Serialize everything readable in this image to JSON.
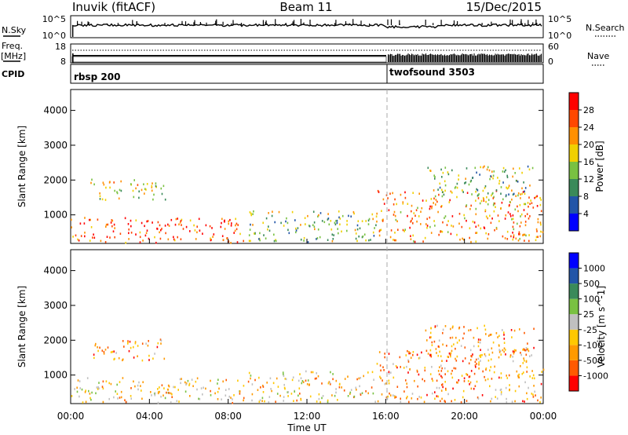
{
  "header": {
    "station": "Inuvik (fitACF)",
    "beam": "Beam 11",
    "date": "15/Dec/2015"
  },
  "strips": {
    "nsky_label": "N.Sky",
    "nsky_ticks": [
      "10^5",
      "10^0"
    ],
    "nsearch_label": "N.Search",
    "nsearch_ticks": [
      "10^5",
      "10^0"
    ],
    "freq_label_line1": "Freq.",
    "freq_label_line2": "[MHz]",
    "freq_ticks": [
      "18",
      "8"
    ],
    "nave_label": "Nave",
    "nave_ticks": [
      "60",
      "0"
    ],
    "cpid_label": "CPID",
    "modes": [
      {
        "name": "rbsp 200",
        "start_hour": 0
      },
      {
        "name": "twofsound 3503",
        "start_hour": 16
      }
    ]
  },
  "axes": {
    "ylabel": "Slant Range [km]",
    "xlabel": "Time UT",
    "x_ticks": [
      "00:00",
      "04:00",
      "08:00",
      "12:00",
      "16:00",
      "20:00",
      "00:00"
    ],
    "y_ticks": [
      "1000",
      "2000",
      "3000",
      "4000"
    ]
  },
  "chart_data": [
    {
      "type": "heatmap",
      "title": "",
      "xlabel": "Time UT",
      "ylabel": "Slant Range [km]",
      "xlim_hours": [
        0,
        24
      ],
      "ylim_km": [
        180,
        4600
      ],
      "colorbar_label": "Power [dB]",
      "colorbar_ticks": [
        "4",
        "8",
        "12",
        "16",
        "20",
        "24",
        "28"
      ],
      "colors": [
        "#0000ff",
        "#2255a8",
        "#3a8a5a",
        "#79c142",
        "#f0d000",
        "#ff9000",
        "#ff4800",
        "#ff0000"
      ],
      "regions": [
        {
          "t": [
            0.0,
            8.8
          ],
          "r": [
            180,
            900
          ],
          "level": 6
        },
        {
          "t": [
            1.0,
            4.8
          ],
          "r": [
            1400,
            2000
          ],
          "level": 4
        },
        {
          "t": [
            9.0,
            15.5
          ],
          "r": [
            200,
            1100
          ],
          "level": 3
        },
        {
          "t": [
            15.5,
            24.0
          ],
          "r": [
            200,
            1700
          ],
          "level": 5
        },
        {
          "t": [
            18.0,
            23.5
          ],
          "r": [
            1500,
            2400
          ],
          "level": 3
        }
      ]
    },
    {
      "type": "heatmap",
      "title": "",
      "xlabel": "Time UT",
      "ylabel": "Slant Range [km]",
      "xlim_hours": [
        0,
        24
      ],
      "ylim_km": [
        180,
        4600
      ],
      "colorbar_label": "Velocity [m s^-1]",
      "colorbar_ticks": [
        "-1000",
        "-500",
        "-100",
        "-25",
        "25",
        "100",
        "500",
        "1000"
      ],
      "colors": [
        "#ff0000",
        "#ff5a00",
        "#ff9a00",
        "#ffc800",
        "#c0c0c0",
        "#79c142",
        "#3a8a5a",
        "#2255a8",
        "#0000ff"
      ],
      "regions": [
        {
          "t": [
            0.0,
            8.8
          ],
          "r": [
            180,
            900
          ],
          "level": 3
        },
        {
          "t": [
            1.0,
            4.8
          ],
          "r": [
            1400,
            2000
          ],
          "level": 2
        },
        {
          "t": [
            9.0,
            15.5
          ],
          "r": [
            200,
            1100
          ],
          "level": 3
        },
        {
          "t": [
            15.5,
            24.0
          ],
          "r": [
            200,
            1700
          ],
          "level": 2
        },
        {
          "t": [
            18.0,
            23.5
          ],
          "r": [
            1500,
            2400
          ],
          "level": 2
        }
      ]
    }
  ]
}
